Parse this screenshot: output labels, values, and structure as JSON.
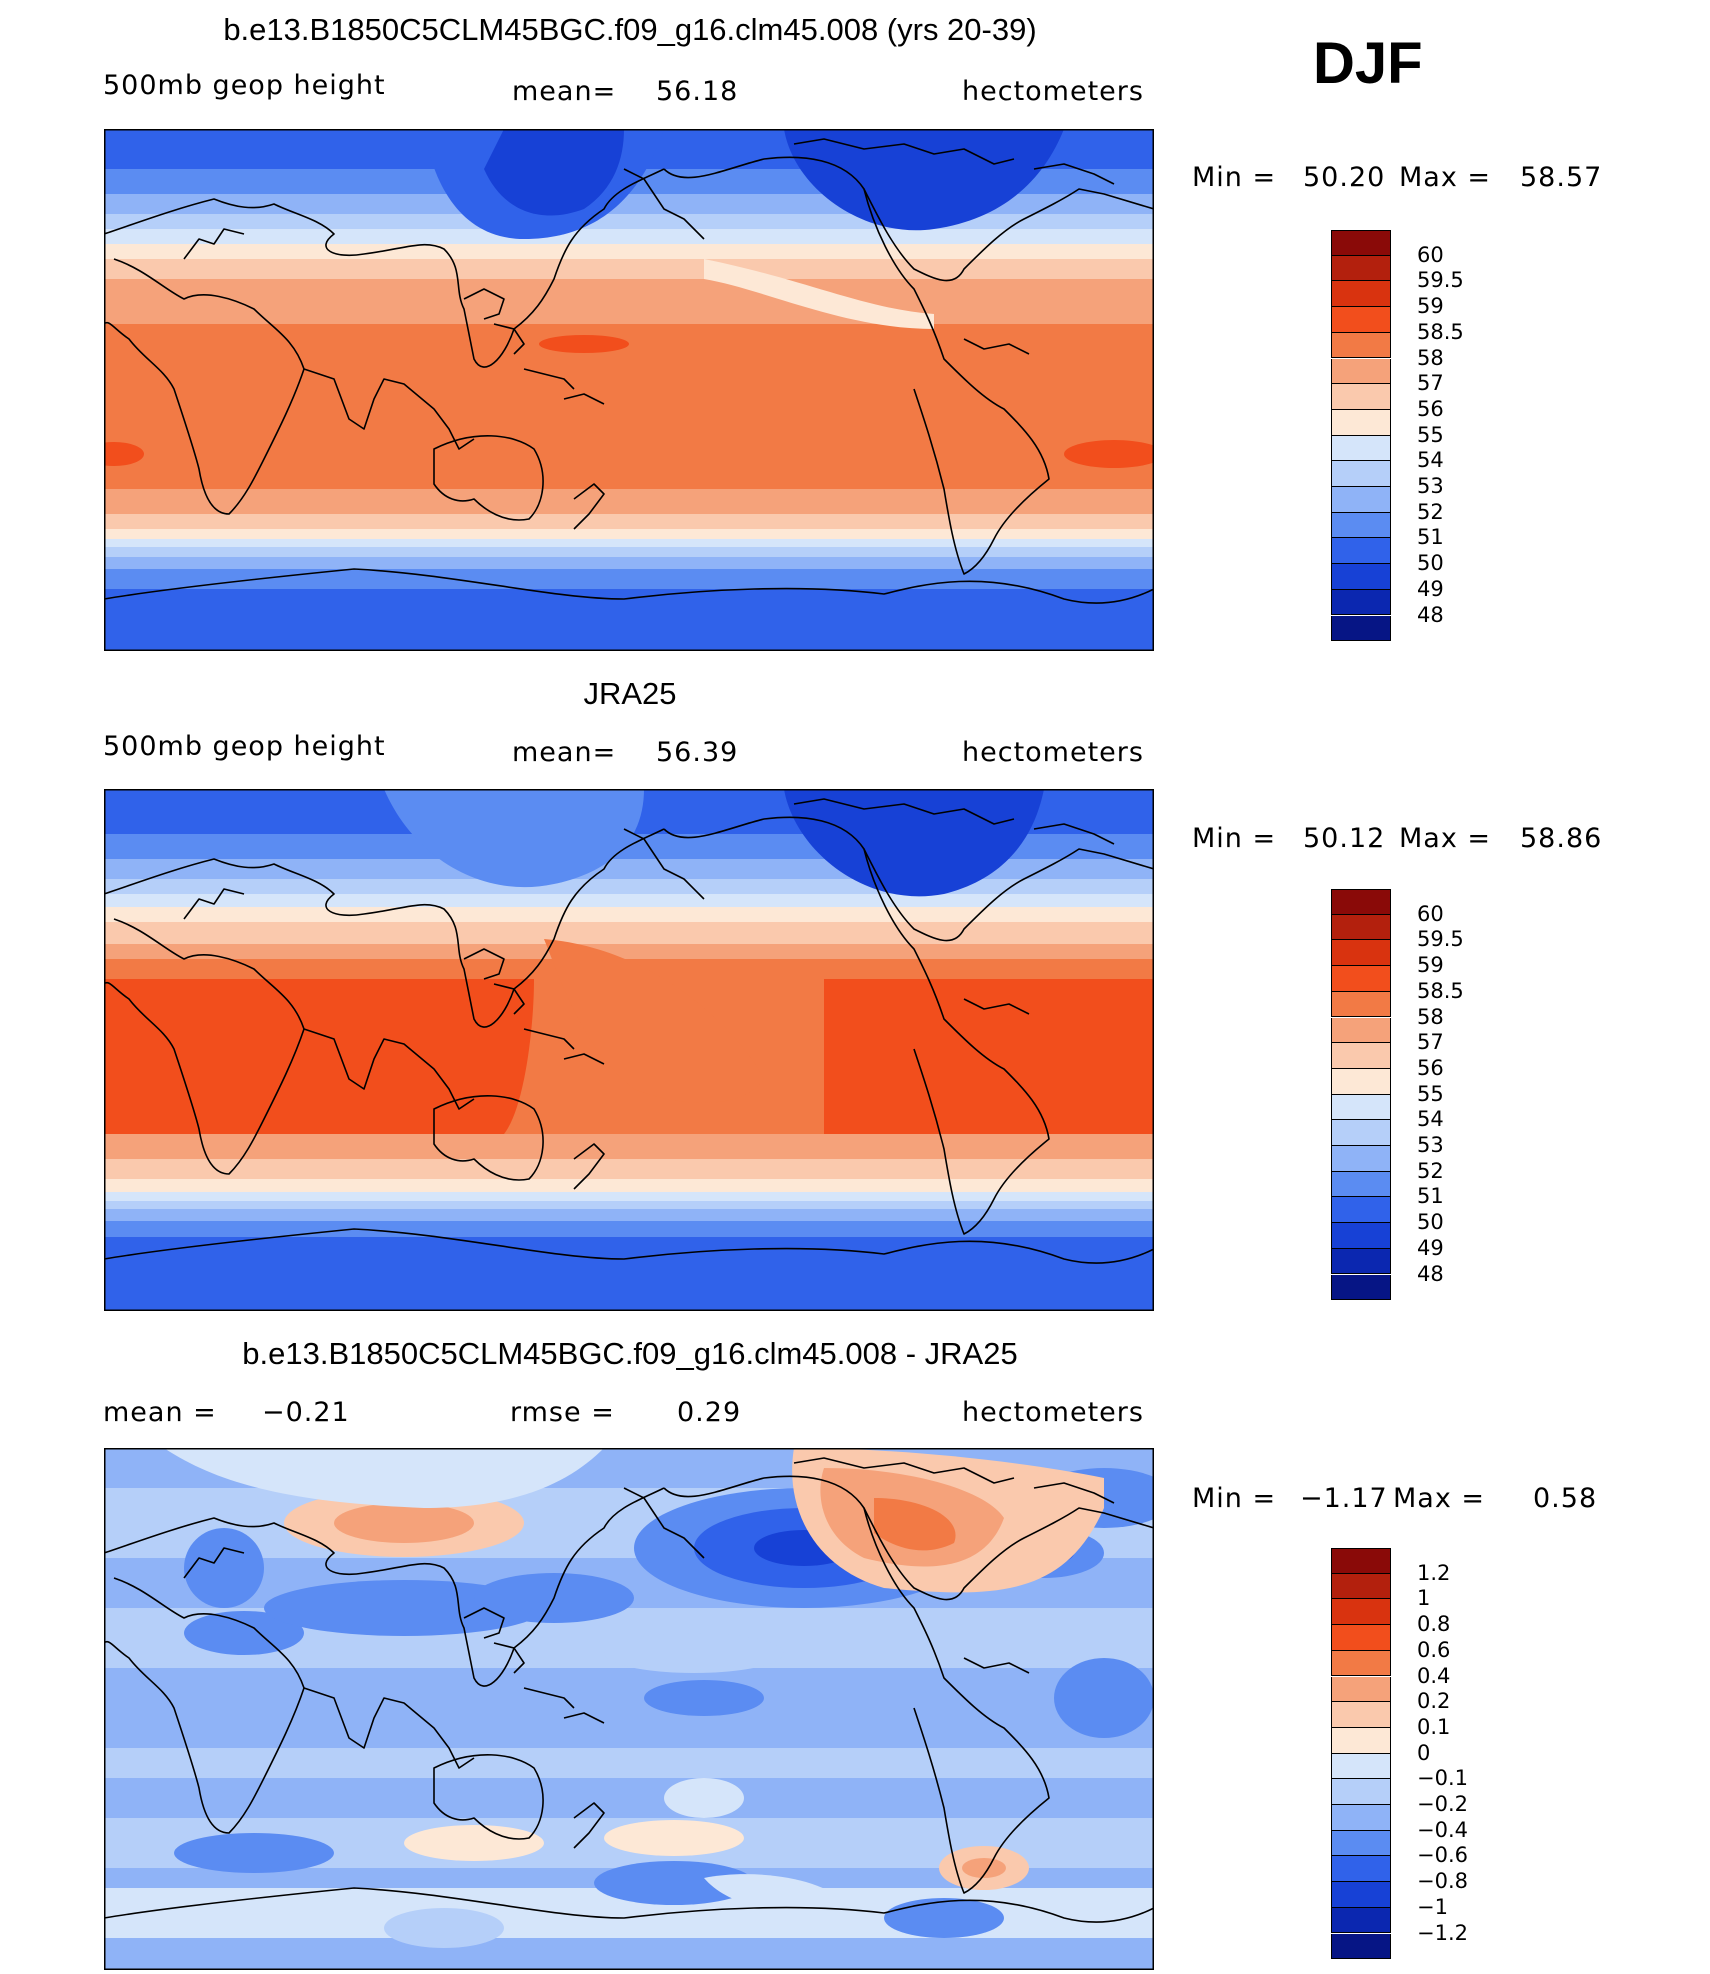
{
  "season": "DJF",
  "chart_data": [
    {
      "type": "heatmap",
      "title": "b.e13.B1850C5CLM45BGC.f09_g16.clm45.008 (yrs 20-39)",
      "variable": "500mb geop height",
      "stat1_label": "mean=",
      "stat1_value": "56.18",
      "units": "hectometers",
      "min_label": "Min =",
      "min_value": "50.20",
      "max_label": "Max =",
      "max_value": "58.57",
      "colorbar_levels": [
        "60",
        "59.5",
        "59",
        "58.5",
        "58",
        "57",
        "56",
        "55",
        "54",
        "53",
        "52",
        "51",
        "50",
        "49",
        "48"
      ],
      "colorbar_colors": [
        "#8a0a08",
        "#b3200d",
        "#d9330f",
        "#f24e1c",
        "#f27a45",
        "#f5a27a",
        "#fac9ad",
        "#fde8d6",
        "#d5e5fa",
        "#b5cff9",
        "#8fb3f7",
        "#5b8cf2",
        "#3062ea",
        "#1741d6",
        "#0b27b0",
        "#061585"
      ],
      "field": "model"
    },
    {
      "type": "heatmap",
      "title": "JRA25",
      "variable": "500mb geop height",
      "stat1_label": "mean=",
      "stat1_value": "56.39",
      "units": "hectometers",
      "min_label": "Min =",
      "min_value": "50.12",
      "max_label": "Max =",
      "max_value": "58.86",
      "colorbar_levels": [
        "60",
        "59.5",
        "59",
        "58.5",
        "58",
        "57",
        "56",
        "55",
        "54",
        "53",
        "52",
        "51",
        "50",
        "49",
        "48"
      ],
      "colorbar_colors": [
        "#8a0a08",
        "#b3200d",
        "#d9330f",
        "#f24e1c",
        "#f27a45",
        "#f5a27a",
        "#fac9ad",
        "#fde8d6",
        "#d5e5fa",
        "#b5cff9",
        "#8fb3f7",
        "#5b8cf2",
        "#3062ea",
        "#1741d6",
        "#0b27b0",
        "#061585"
      ],
      "field": "obs"
    },
    {
      "type": "heatmap",
      "title": "b.e13.B1850C5CLM45BGC.f09_g16.clm45.008 - JRA25",
      "stat1_label": "mean =",
      "stat1_value": "−0.21",
      "stat2_label": "rmse =",
      "stat2_value": "0.29",
      "units": "hectometers",
      "min_label": "Min =",
      "min_value": "−1.17",
      "max_label": "Max =",
      "max_value": "0.58",
      "colorbar_levels": [
        "1.2",
        "1",
        "0.8",
        "0.6",
        "0.4",
        "0.2",
        "0.1",
        "0",
        "−0.1",
        "−0.2",
        "−0.4",
        "−0.6",
        "−0.8",
        "−1",
        "−1.2"
      ],
      "colorbar_colors": [
        "#8a0a08",
        "#b3200d",
        "#d9330f",
        "#f24e1c",
        "#f27a45",
        "#f5a27a",
        "#fac9ad",
        "#fde8d6",
        "#d5e5fa",
        "#b5cff9",
        "#8fb3f7",
        "#5b8cf2",
        "#3062ea",
        "#1741d6",
        "#0b27b0",
        "#061585"
      ],
      "field": "diff"
    }
  ]
}
